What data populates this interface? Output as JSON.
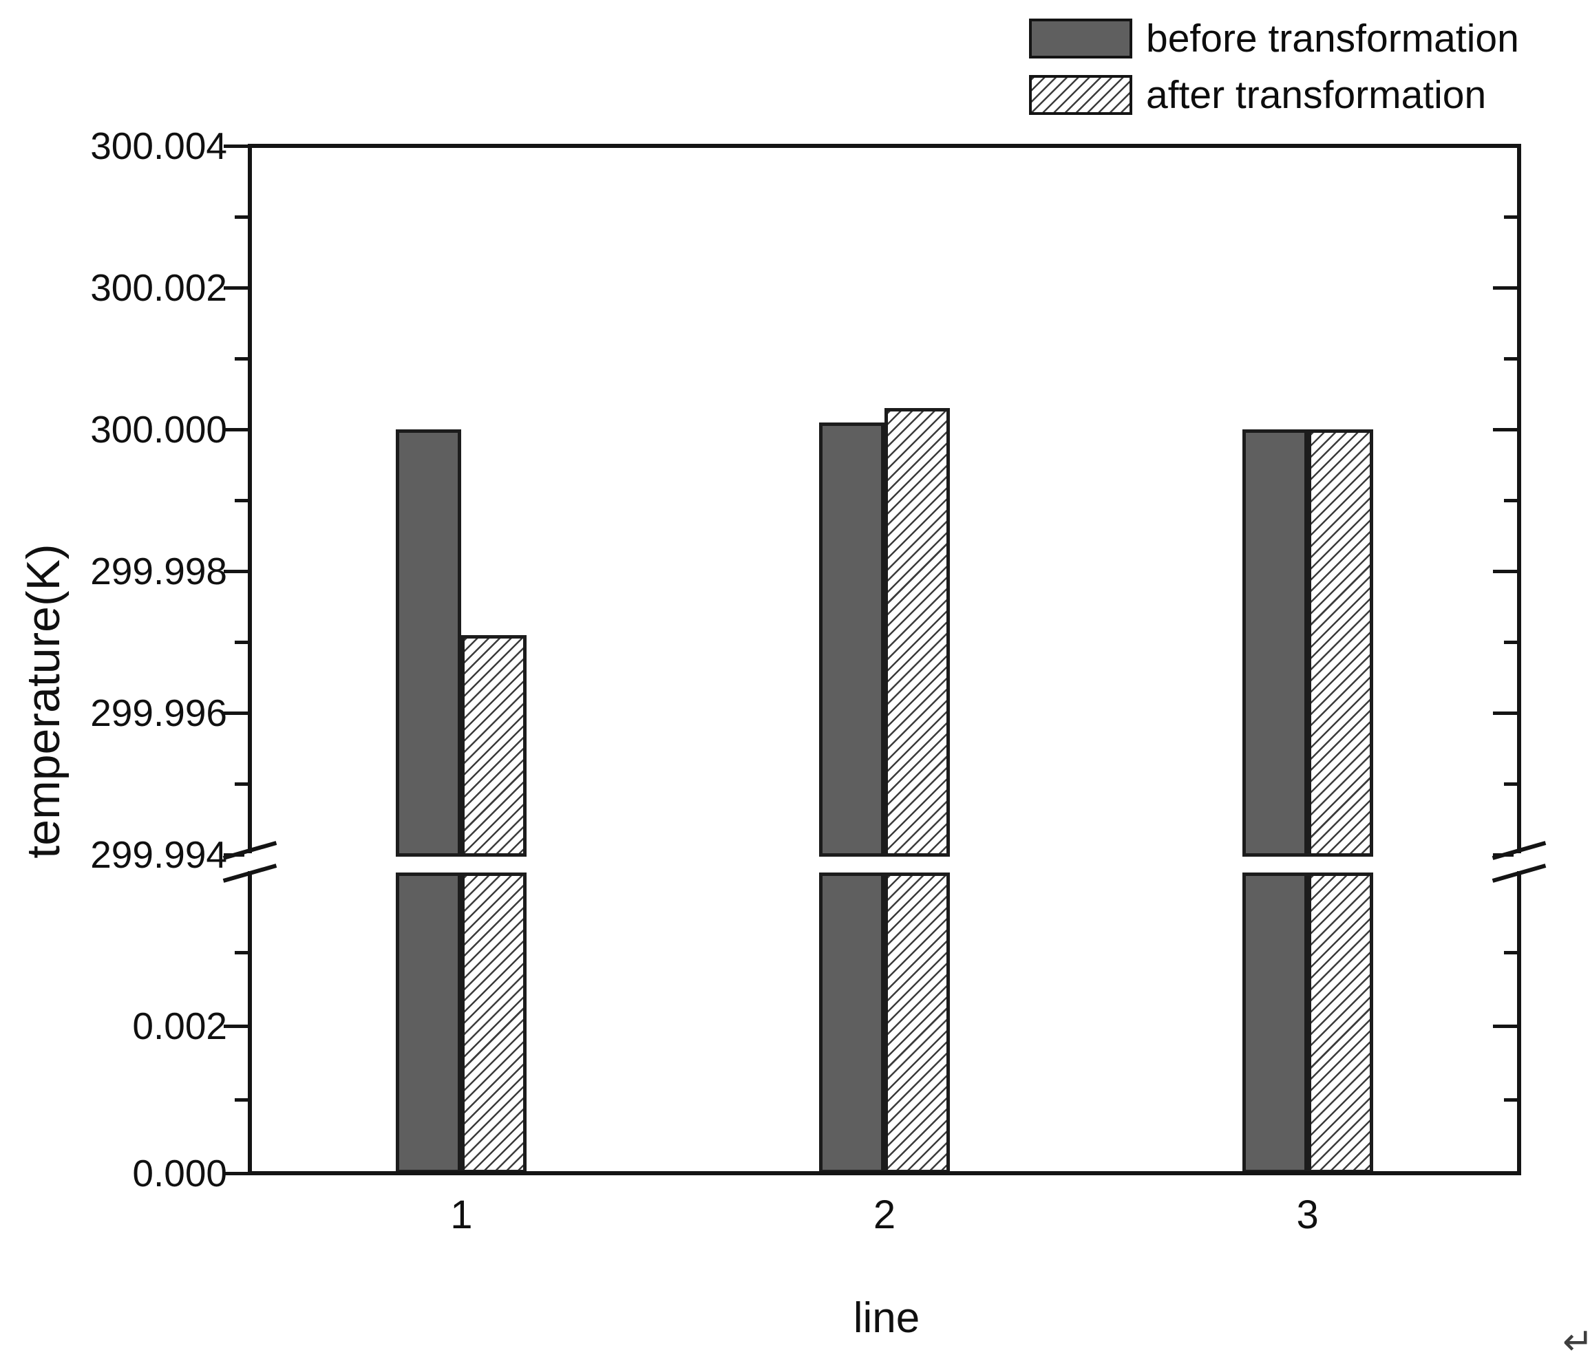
{
  "chart_data": {
    "type": "bar",
    "title": "",
    "xlabel": "line",
    "ylabel": "temperature(K)",
    "categories": [
      "1",
      "2",
      "3"
    ],
    "series": [
      {
        "name": "before transformation",
        "pattern": "solid",
        "color": "#5f5f5f",
        "values": [
          300.0,
          300.0001,
          300.0
        ]
      },
      {
        "name": "after transformation",
        "pattern": "hatched",
        "color": "#ffffff",
        "hatch_color": "#3c3c3c",
        "values": [
          299.9971,
          300.0003,
          300.0
        ]
      }
    ],
    "y_axis": {
      "unit": "K",
      "broken": true,
      "upper": {
        "range": [
          299.994,
          300.004
        ],
        "labels": [
          "300.004",
          "300.002",
          "300.000",
          "299.998",
          "299.996",
          "299.994"
        ],
        "minor": [
          300.003,
          300.001,
          299.999,
          299.997,
          299.995
        ]
      },
      "lower": {
        "range": [
          0.0,
          0.0043
        ],
        "labels": [
          "0.002",
          "0.000"
        ],
        "minor": [
          0.003,
          0.001
        ]
      }
    },
    "legend_position": "top-right",
    "grid": false
  },
  "artifacts": {
    "return_arrow": "↵"
  }
}
